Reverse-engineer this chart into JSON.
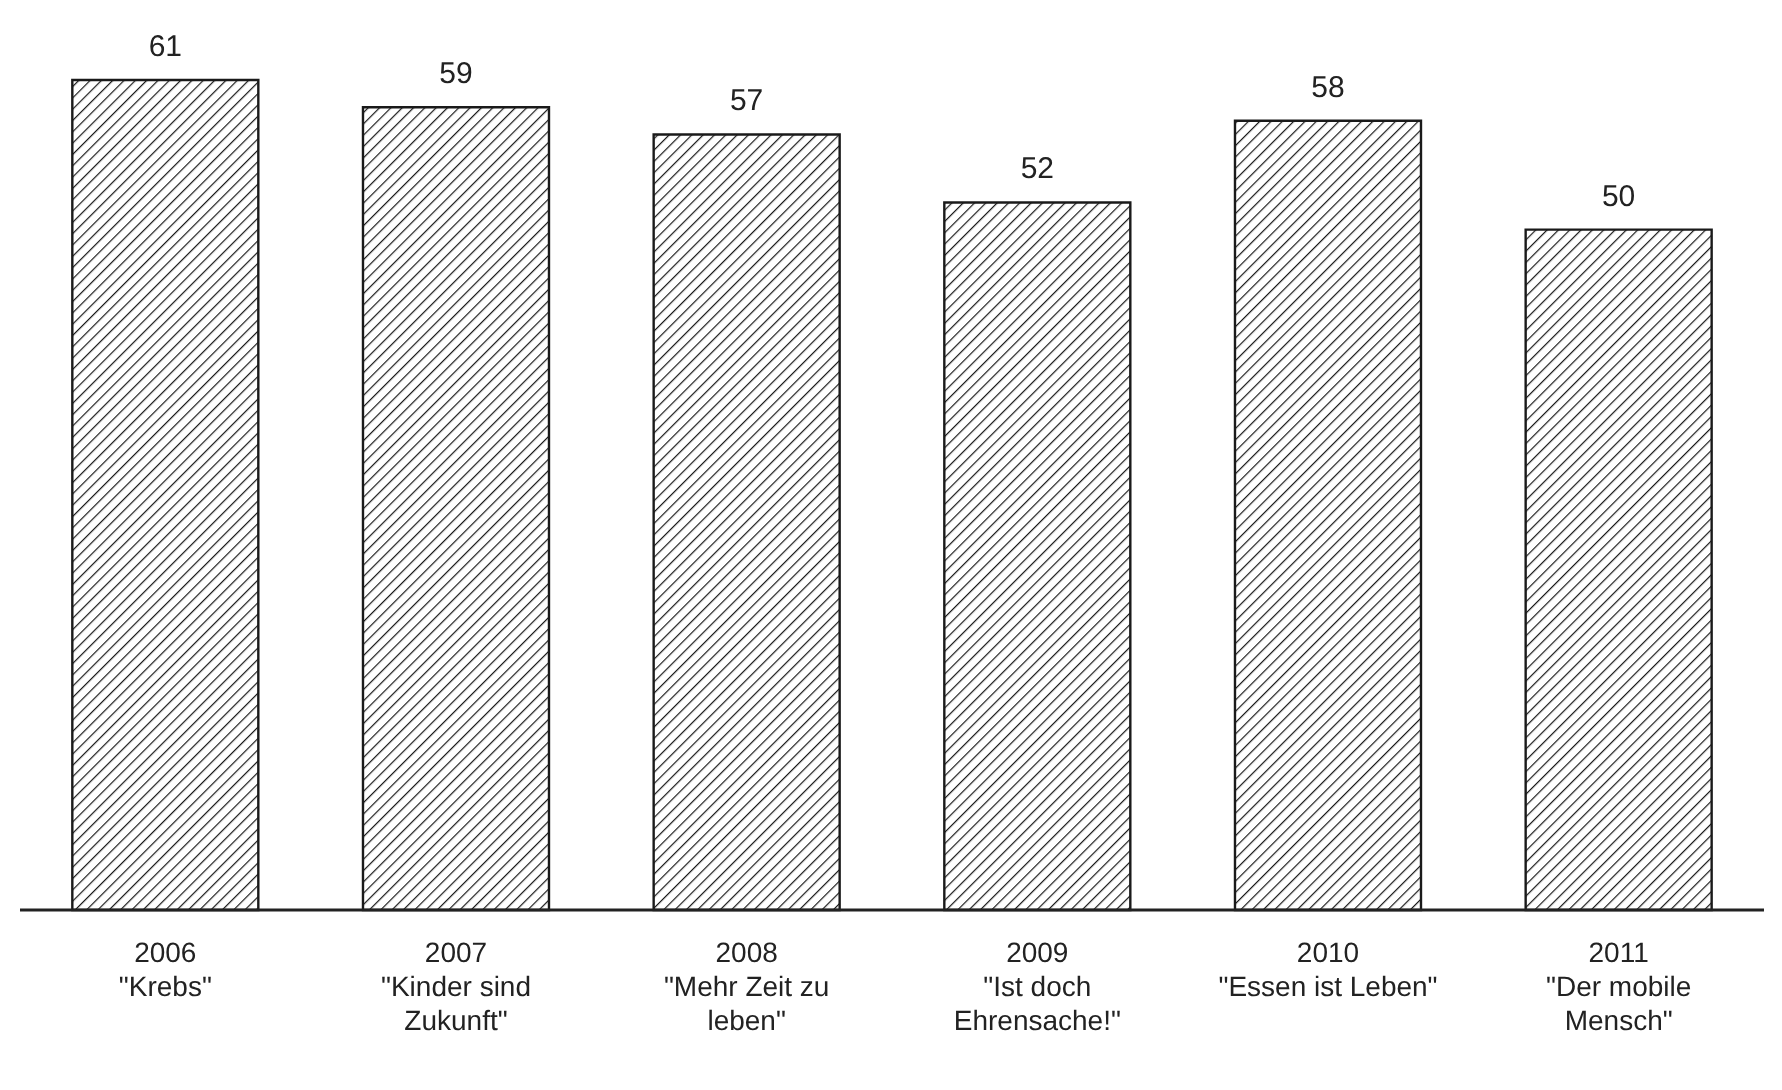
{
  "chart_data": {
    "type": "bar",
    "categories": [
      "2006\n\"Krebs\"",
      "2007\n\"Kinder sind\nZukunft\"",
      "2008\n\"Mehr Zeit zu\nleben\"",
      "2009\n\"Ist doch\nEhrensache!\"",
      "2010\n\"Essen ist Leben\"",
      "2011\n\"Der mobile\nMensch\""
    ],
    "values": [
      61,
      59,
      57,
      52,
      58,
      50
    ],
    "color": "#1a1a1a",
    "data_labels": true
  }
}
